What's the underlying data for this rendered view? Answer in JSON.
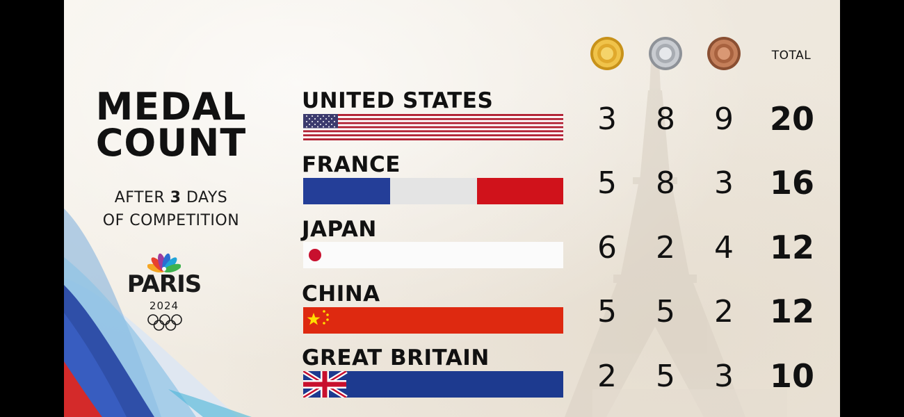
{
  "title": "MEDAL\nCOUNT",
  "subtitle": {
    "line1_before": "AFTER ",
    "line1_bold": "3",
    "line1_after": " DAYS",
    "line2": "OF COMPETITION"
  },
  "logo": {
    "city": "PARIS",
    "year": "2024"
  },
  "header": {
    "gold_icon": "gold-medal",
    "silver_icon": "silver-medal",
    "bronze_icon": "bronze-medal",
    "total_label": "TOTAL"
  },
  "rows": [
    {
      "country": "UNITED STATES",
      "flag": "usa",
      "gold": "3",
      "silver": "8",
      "bronze": "9",
      "total": "20"
    },
    {
      "country": "FRANCE",
      "flag": "france",
      "gold": "5",
      "silver": "8",
      "bronze": "3",
      "total": "16"
    },
    {
      "country": "JAPAN",
      "flag": "japan",
      "gold": "6",
      "silver": "2",
      "bronze": "4",
      "total": "12"
    },
    {
      "country": "CHINA",
      "flag": "china",
      "gold": "5",
      "silver": "5",
      "bronze": "2",
      "total": "12"
    },
    {
      "country": "GREAT BRITAIN",
      "flag": "great-britain",
      "gold": "2",
      "silver": "5",
      "bronze": "3",
      "total": "10"
    }
  ],
  "colors": {
    "gold": "#d9a72a",
    "silver": "#b9bcc2",
    "bronze": "#b8734e",
    "usa_red": "#b22234",
    "usa_blue": "#3c3b6e",
    "france_blue": "#243e98",
    "france_red": "#d0121b",
    "japan_red": "#c8102e",
    "china_red": "#de2910",
    "china_yellow": "#ffde00",
    "uk_blue": "#1d3a8f",
    "uk_red": "#c8102e"
  }
}
